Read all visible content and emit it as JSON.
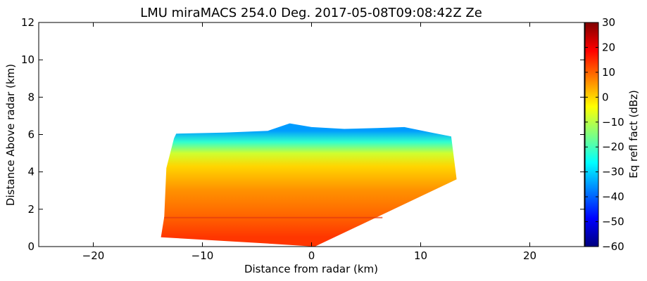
{
  "chart_data": {
    "type": "heatmap",
    "title": "LMU miraMACS 254.0 Deg. 2017-05-08T09:08:42Z  Ze",
    "xlabel": "Distance from radar (km)",
    "ylabel": "Distance Above radar  (km)",
    "xlim": [
      -25,
      25
    ],
    "ylim": [
      0,
      12
    ],
    "x_ticks": [
      -20,
      -10,
      0,
      10,
      20
    ],
    "x_tick_labels": [
      "−20",
      "−10",
      "0",
      "10",
      "20"
    ],
    "y_ticks": [
      0,
      2,
      4,
      6,
      8,
      10,
      12
    ],
    "y_tick_labels": [
      "0",
      "2",
      "4",
      "6",
      "8",
      "10",
      "12"
    ],
    "colorbar": {
      "label": "Eq refl fact (dBz)",
      "range": [
        -60,
        30
      ],
      "ticks": [
        30,
        20,
        10,
        0,
        -10,
        -20,
        -30,
        -40,
        -50,
        -60
      ],
      "tick_labels": [
        "30",
        "20",
        "10",
        "0",
        "−10",
        "−20",
        "−30",
        "−40",
        "−50",
        "−60"
      ],
      "colormap": "jet"
    },
    "scan_region": {
      "outline_km": [
        [
          -13.8,
          0.5
        ],
        [
          -13.5,
          1.6
        ],
        [
          -13.3,
          4.2
        ],
        [
          -12.6,
          5.8
        ],
        [
          -12.4,
          6.05
        ],
        [
          -8.0,
          6.1
        ],
        [
          -4.0,
          6.2
        ],
        [
          -2.0,
          6.6
        ],
        [
          0.0,
          6.4
        ],
        [
          3.0,
          6.3
        ],
        [
          6.0,
          6.35
        ],
        [
          8.5,
          6.4
        ],
        [
          11.0,
          6.1
        ],
        [
          12.8,
          5.9
        ],
        [
          13.3,
          3.6
        ],
        [
          0.3,
          0.0
        ],
        [
          -5.0,
          0.2
        ]
      ],
      "reflectivity_layers_dbz": [
        {
          "height_km": 0.5,
          "value_dbz": 14
        },
        {
          "height_km": 1.6,
          "value_dbz": 10
        },
        {
          "height_km": 3.0,
          "value_dbz": 6
        },
        {
          "height_km": 4.3,
          "value_dbz": 0
        },
        {
          "height_km": 5.0,
          "value_dbz": -8
        },
        {
          "height_km": 5.6,
          "value_dbz": -22
        },
        {
          "height_km": 6.2,
          "value_dbz": -35
        }
      ]
    }
  }
}
